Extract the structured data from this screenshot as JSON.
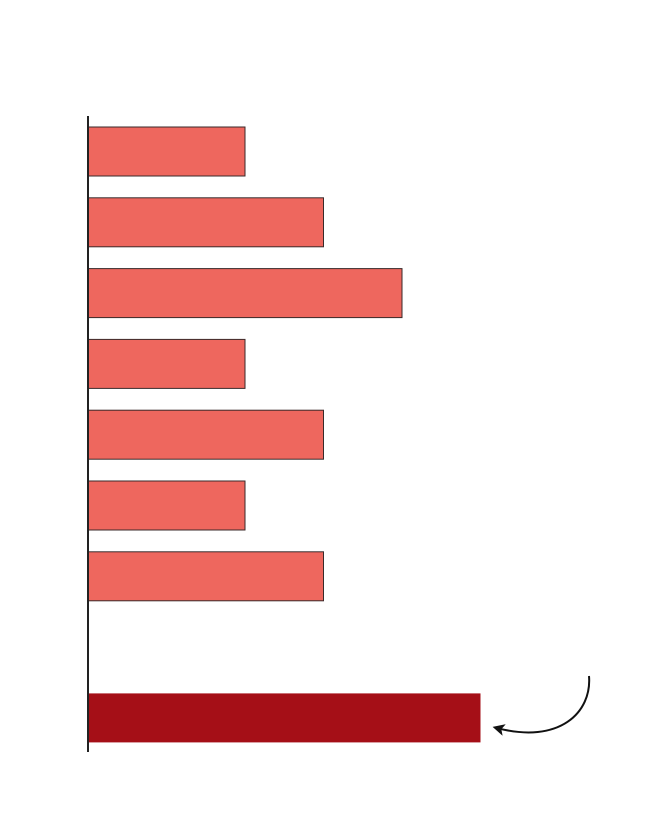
{
  "chart_data": {
    "type": "bar",
    "orientation": "horizontal",
    "title": "",
    "xlabel": "",
    "ylabel": "",
    "grid": false,
    "axis": {
      "show_y_axis_line": true,
      "show_tick_labels": false
    },
    "xlim": [
      0,
      5
    ],
    "rows": [
      {
        "value": 2,
        "highlight": false
      },
      {
        "value": 3,
        "highlight": false
      },
      {
        "value": 4,
        "highlight": false
      },
      {
        "value": 2,
        "highlight": false
      },
      {
        "value": 3,
        "highlight": false
      },
      {
        "value": 2,
        "highlight": false
      },
      {
        "value": 3,
        "highlight": false
      },
      {
        "value": null,
        "highlight": false
      },
      {
        "value": 5,
        "highlight": true
      }
    ],
    "colors": {
      "bar": "#ee675e",
      "highlight": "#a50f17",
      "axis": "#222222",
      "arrow": "#111111"
    },
    "annotation": {
      "type": "curved-arrow",
      "points_to": "highlighted-bar"
    }
  }
}
